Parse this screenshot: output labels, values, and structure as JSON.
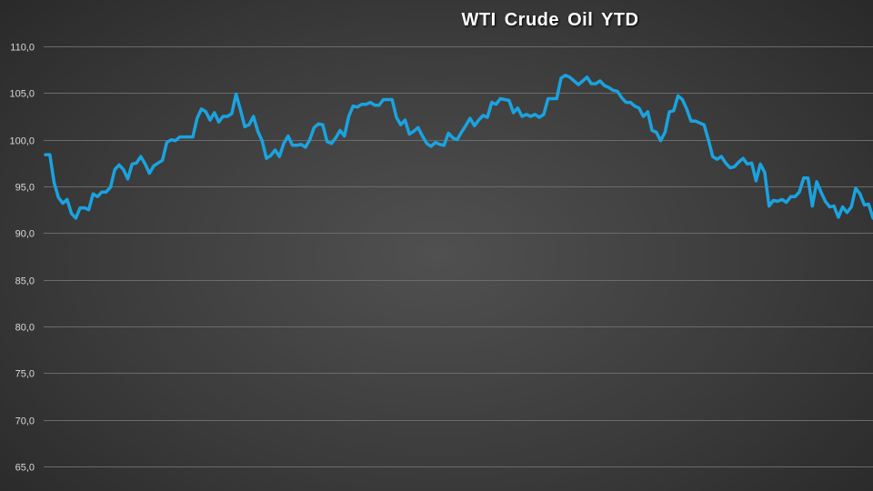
{
  "chart_data": {
    "type": "line",
    "title": "WTI Crude Oil YTD",
    "xlabel": "",
    "ylabel": "",
    "ylim": [
      65,
      110
    ],
    "yticks": [
      "65,0",
      "70,0",
      "75,0",
      "80,0",
      "85,0",
      "90,0",
      "95,0",
      "100,0",
      "105,0",
      "110,0"
    ],
    "ytick_values": [
      65,
      70,
      75,
      80,
      85,
      90,
      95,
      100,
      105,
      110
    ],
    "grid": true,
    "legend": "none",
    "colors": {
      "series": "#1aa3e0",
      "grid": "#6b6b6b",
      "text": "#d8d8d8",
      "title": "#ffffff"
    },
    "series": [
      {
        "values": [
          98.4,
          98.4,
          95.4,
          93.8,
          93.2,
          93.6,
          92.1,
          91.6,
          92.7,
          92.7,
          92.5,
          94.2,
          93.9,
          94.4,
          94.4,
          94.9,
          96.8,
          97.3,
          96.8,
          95.8,
          97.4,
          97.5,
          98.2,
          97.4,
          96.4,
          97.2,
          97.5,
          97.8,
          99.7,
          100.0,
          99.9,
          100.3,
          100.3,
          100.3,
          100.3,
          102.3,
          103.3,
          103.0,
          102.1,
          102.9,
          101.9,
          102.5,
          102.5,
          102.8,
          104.9,
          103.2,
          101.4,
          101.6,
          102.5,
          100.9,
          99.9,
          98.0,
          98.3,
          98.9,
          98.2,
          99.6,
          100.4,
          99.4,
          99.4,
          99.5,
          99.2,
          100.0,
          101.3,
          101.7,
          101.6,
          99.8,
          99.6,
          100.2,
          101.0,
          100.4,
          102.5,
          103.6,
          103.5,
          103.8,
          103.8,
          104.0,
          103.7,
          103.7,
          104.3,
          104.3,
          104.3,
          102.4,
          101.6,
          102.1,
          100.6,
          100.9,
          101.3,
          100.4,
          99.6,
          99.3,
          99.7,
          99.5,
          99.4,
          100.7,
          100.2,
          100.0,
          100.8,
          101.5,
          102.3,
          101.5,
          102.1,
          102.6,
          102.4,
          104.0,
          103.8,
          104.4,
          104.3,
          104.2,
          102.9,
          103.4,
          102.5,
          102.7,
          102.5,
          102.7,
          102.4,
          102.7,
          104.4,
          104.4,
          104.4,
          106.6,
          106.9,
          106.7,
          106.3,
          105.9,
          106.3,
          106.7,
          106.0,
          106.0,
          106.3,
          105.8,
          105.6,
          105.3,
          105.2,
          104.5,
          104.0,
          104.0,
          103.6,
          103.4,
          102.5,
          103.0,
          101.0,
          100.8,
          99.9,
          100.8,
          103.0,
          103.1,
          104.7,
          104.3,
          103.3,
          102.0,
          102.0,
          101.8,
          101.6,
          100.0,
          98.2,
          97.9,
          98.2,
          97.5,
          97.0,
          97.1,
          97.6,
          98.0,
          97.4,
          97.5,
          95.6,
          97.4,
          96.5,
          92.9,
          93.5,
          93.4,
          93.6,
          93.3,
          93.9,
          93.9,
          94.4,
          95.9,
          95.9,
          92.9,
          95.5,
          94.4,
          93.4,
          92.8,
          92.9,
          91.7,
          92.8,
          92.2,
          92.8,
          94.8,
          94.2,
          93.0,
          93.1,
          91.6
        ]
      }
    ]
  }
}
